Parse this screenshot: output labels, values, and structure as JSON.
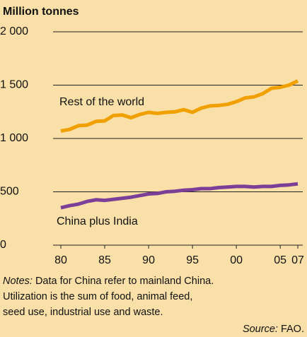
{
  "chart_data": {
    "type": "line",
    "title": "Million tonnes",
    "x": [
      1980,
      1981,
      1982,
      1983,
      1984,
      1985,
      1986,
      1987,
      1988,
      1989,
      1990,
      1991,
      1992,
      1993,
      1994,
      1995,
      1996,
      1997,
      1998,
      1999,
      2000,
      2001,
      2002,
      2003,
      2004,
      2005,
      2006,
      2007
    ],
    "series": [
      {
        "name": "Rest of the world",
        "color": "#f0a000",
        "values": [
          1070,
          1085,
          1120,
          1125,
          1160,
          1165,
          1215,
          1220,
          1195,
          1225,
          1245,
          1235,
          1245,
          1250,
          1270,
          1245,
          1285,
          1305,
          1310,
          1320,
          1345,
          1380,
          1390,
          1420,
          1470,
          1480,
          1500,
          1540
        ]
      },
      {
        "name": "China plus India",
        "color": "#7b3f98",
        "values": [
          350,
          370,
          385,
          410,
          425,
          420,
          430,
          440,
          450,
          465,
          480,
          485,
          500,
          505,
          515,
          520,
          530,
          530,
          540,
          545,
          550,
          550,
          545,
          550,
          550,
          560,
          565,
          575
        ]
      }
    ],
    "xlim": [
      1980,
      2007
    ],
    "xticks": [
      {
        "value": 1980,
        "label": "80"
      },
      {
        "value": 1985,
        "label": "85"
      },
      {
        "value": 1990,
        "label": "90"
      },
      {
        "value": 1995,
        "label": "95"
      },
      {
        "value": 2000,
        "label": "00"
      },
      {
        "value": 2005,
        "label": "05"
      },
      {
        "value": 2007,
        "label": "07"
      }
    ],
    "ylim": [
      0,
      2000
    ],
    "yticks": [
      0,
      500,
      {
        "value": 1000,
        "label": "1 000"
      },
      {
        "value": 1500,
        "label": "1 500"
      },
      {
        "value": 2000,
        "label": "2 000"
      }
    ],
    "grid": true
  },
  "notes": {
    "label": "Notes:",
    "lines": [
      "Data for China refer to mainland China.",
      "Utilization is the sum of food, animal feed,",
      "seed use, industrial use and waste."
    ]
  },
  "source": {
    "label": "Source:",
    "text": "FAO."
  }
}
